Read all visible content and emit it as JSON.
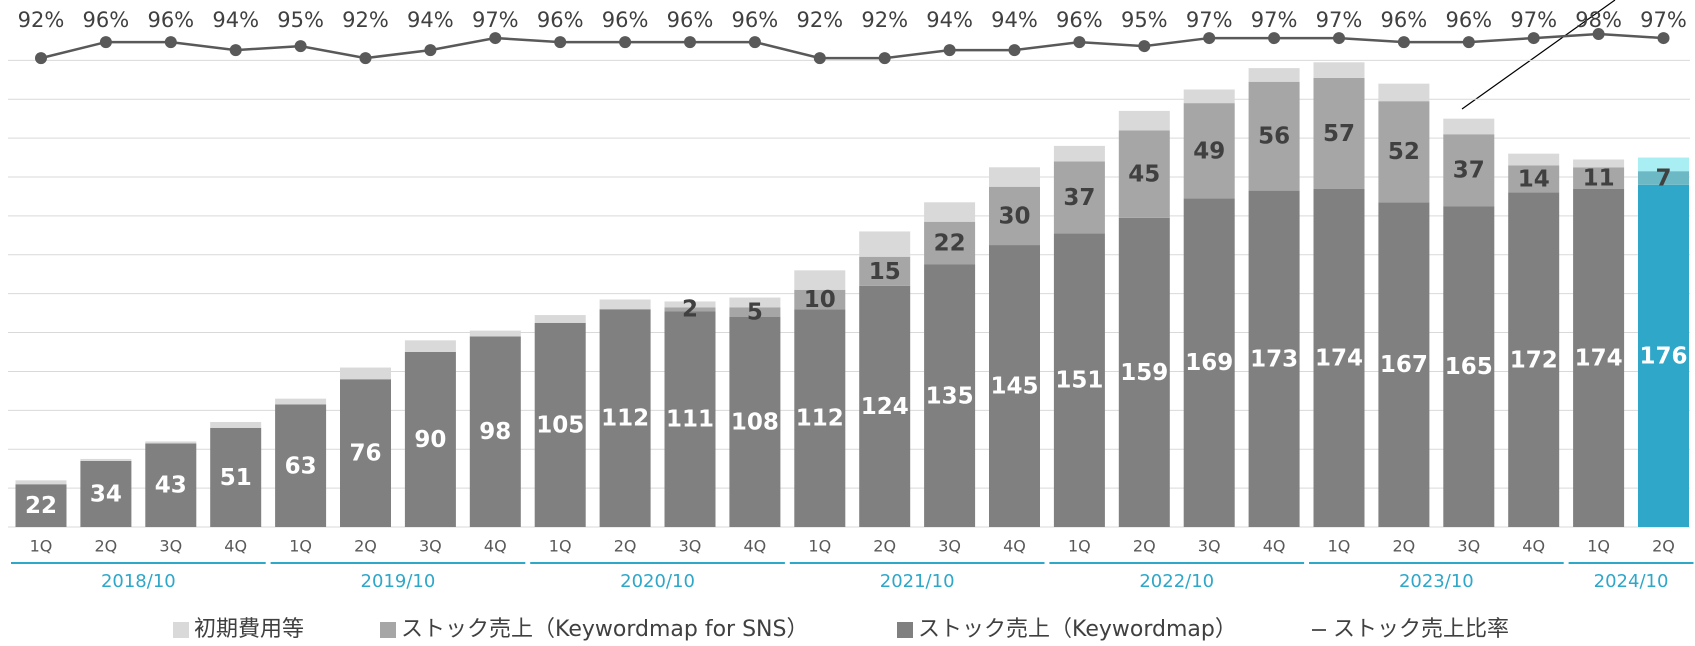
{
  "chart_data": {
    "type": "stacked_bar_line",
    "groups": [
      {
        "label": "2018/10",
        "categories": [
          "1Q",
          "2Q",
          "3Q",
          "4Q"
        ]
      },
      {
        "label": "2019/10",
        "categories": [
          "1Q",
          "2Q",
          "3Q",
          "4Q"
        ]
      },
      {
        "label": "2020/10",
        "categories": [
          "1Q",
          "2Q",
          "3Q",
          "4Q"
        ]
      },
      {
        "label": "2021/10",
        "categories": [
          "1Q",
          "2Q",
          "3Q",
          "4Q"
        ]
      },
      {
        "label": "2022/10",
        "categories": [
          "1Q",
          "2Q",
          "3Q",
          "4Q"
        ]
      },
      {
        "label": "2023/10",
        "categories": [
          "1Q",
          "2Q",
          "3Q",
          "4Q"
        ]
      },
      {
        "label": "2024/10",
        "categories": [
          "1Q",
          "2Q"
        ]
      }
    ],
    "ylim": [
      0,
      270
    ],
    "yticks": [
      0,
      20,
      40,
      60,
      80,
      100,
      120,
      140,
      160,
      180,
      200,
      220,
      240
    ],
    "y2lim": [
      -25,
      106
    ],
    "grid": true,
    "series": [
      {
        "name": "ストック売上（Keywordmap）",
        "kind": "bar",
        "color": "#808080",
        "last_color": "#2ea7c9",
        "label_color": "#ffffff",
        "labeled": true,
        "values": [
          22,
          34,
          43,
          51,
          63,
          76,
          90,
          98,
          105,
          112,
          111,
          108,
          112,
          124,
          135,
          145,
          151,
          159,
          169,
          173,
          174,
          167,
          165,
          172,
          174,
          176
        ]
      },
      {
        "name": "ストック売上（Keywordmap for SNS）",
        "kind": "bar",
        "color": "#a6a6a6",
        "last_color": "#6cb8c4",
        "label_color": "#404040",
        "labeled": true,
        "values": [
          0,
          0,
          0,
          0,
          0,
          0,
          0,
          0,
          0,
          0,
          2,
          5,
          10,
          15,
          22,
          30,
          37,
          45,
          49,
          56,
          57,
          52,
          37,
          14,
          11,
          7
        ]
      },
      {
        "name": "初期費用等",
        "kind": "bar",
        "color": "#d9d9d9",
        "last_color": "#a8eef2",
        "labeled": false,
        "values": [
          2,
          1,
          1,
          3,
          3,
          6,
          6,
          3,
          4,
          5,
          3,
          5,
          10,
          13,
          10,
          10,
          8,
          10,
          7,
          7,
          8,
          9,
          8,
          6,
          4,
          7
        ]
      },
      {
        "name": "ストック売上比率",
        "kind": "line",
        "axis": "y2",
        "color": "#595959",
        "values": [
          92,
          96,
          96,
          94,
          95,
          92,
          94,
          97,
          96,
          96,
          96,
          96,
          92,
          92,
          94,
          94,
          96,
          95,
          97,
          97,
          97,
          96,
          96,
          97,
          98,
          97
        ],
        "value_labels": [
          "92%",
          "96%",
          "96%",
          "94%",
          "95%",
          "92%",
          "94%",
          "97%",
          "96%",
          "96%",
          "96%",
          "96%",
          "92%",
          "92%",
          "94%",
          "94%",
          "96%",
          "95%",
          "97%",
          "97%",
          "97%",
          "96%",
          "96%",
          "97%",
          "98%",
          "97%"
        ]
      }
    ],
    "legend_order": [
      2,
      1,
      0,
      3
    ]
  }
}
